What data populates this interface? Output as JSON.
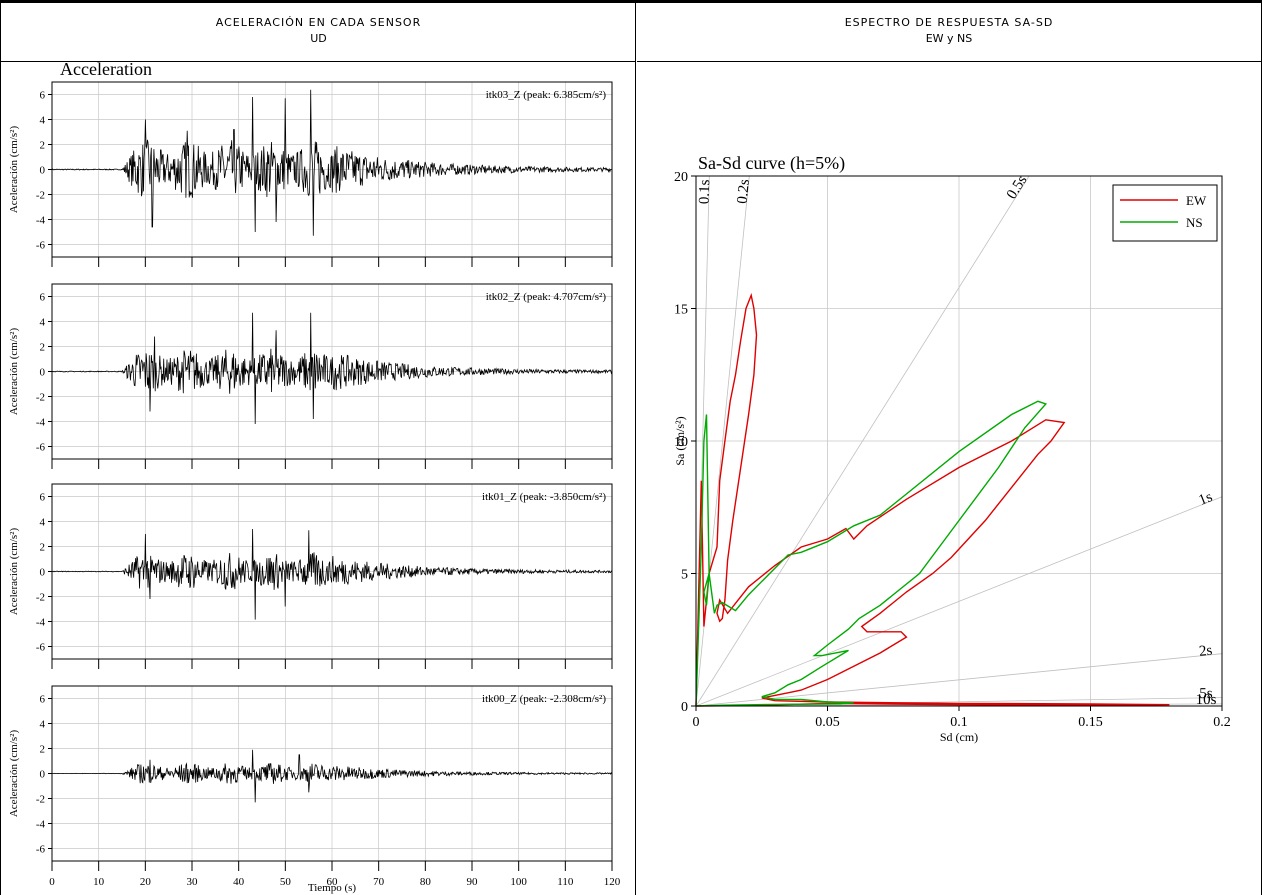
{
  "headers": {
    "left_title": "ACELERACIÓN EN CADA SENSOR",
    "left_sub": "UD",
    "right_title": "ESPECTRO DE RESPUESTA SA-SD",
    "right_sub": "EW y NS"
  },
  "colors": {
    "ew": "#e00000",
    "ns": "#00aa00",
    "grid": "#c8c8c8",
    "trace": "#000000"
  },
  "chart_data": [
    {
      "type": "line",
      "title": "Acceleration",
      "xlabel": "Tiempo (s)",
      "ylabel": "Aceleración (cm/s²)",
      "xlim": [
        0,
        120
      ],
      "ylim": [
        -7,
        7
      ],
      "xticks": [
        0,
        10,
        20,
        30,
        40,
        50,
        60,
        70,
        80,
        90,
        100,
        110,
        120
      ],
      "yticks": [
        -6,
        -4,
        -2,
        0,
        2,
        4,
        6
      ],
      "panels": [
        {
          "name": "itk03_Z",
          "label": "itk03_Z (peak: 6.385cm/s²)",
          "peak": 6.385,
          "peak_time": 55.5,
          "amp": 1.4,
          "bursts": [
            [
              20,
              4.0
            ],
            [
              21.5,
              -4.6
            ],
            [
              29,
              3.1
            ],
            [
              39,
              3.2
            ],
            [
              43,
              5.8
            ],
            [
              43.6,
              -5.0
            ],
            [
              50,
              5.7
            ],
            [
              48,
              -4.2
            ],
            [
              55.5,
              6.385
            ],
            [
              56,
              -5.3
            ]
          ]
        },
        {
          "name": "itk02_Z",
          "label": "itk02_Z (peak: 4.707cm/s²)",
          "peak": 4.707,
          "peak_time": 55.5,
          "amp": 1.1,
          "bursts": [
            [
              21,
              -3.2
            ],
            [
              22,
              2.8
            ],
            [
              43,
              4.7
            ],
            [
              43.5,
              -4.2
            ],
            [
              48,
              3.3
            ],
            [
              55.5,
              4.707
            ],
            [
              56,
              -3.8
            ]
          ]
        },
        {
          "name": "itk01_Z",
          "label": "itk01_Z (peak: -3.850cm/s²)",
          "peak": -3.85,
          "peak_time": 43.5,
          "amp": 0.9,
          "bursts": [
            [
              20,
              3.0
            ],
            [
              21,
              -2.2
            ],
            [
              43.5,
              -3.85
            ],
            [
              43,
              3.4
            ],
            [
              55,
              3.3
            ],
            [
              50,
              -2.8
            ]
          ]
        },
        {
          "name": "itk00_Z",
          "label": "itk00_Z (peak: -2.308cm/s²)",
          "peak": -2.308,
          "peak_time": 43.5,
          "amp": 0.5,
          "bursts": [
            [
              21,
              1.1
            ],
            [
              43,
              1.9
            ],
            [
              43.5,
              -2.308
            ],
            [
              53,
              1.5
            ],
            [
              55,
              -1.5
            ]
          ]
        }
      ]
    },
    {
      "type": "line",
      "title": "Sa-Sd curve (h=5%)",
      "xlabel": "Sd (cm)",
      "ylabel": "Sa (cm/s²)",
      "xlim": [
        0,
        0.2
      ],
      "ylim": [
        0,
        20
      ],
      "xticks": [
        0,
        0.05,
        0.1,
        0.15,
        0.2
      ],
      "yticks": [
        0,
        5,
        10,
        15,
        20
      ],
      "period_lines": [
        "0.1s",
        "0.2s",
        "0.5s",
        "1s",
        "2s",
        "5s",
        "10s"
      ],
      "periods": [
        0.1,
        0.2,
        0.5,
        1,
        2,
        5,
        10
      ],
      "legend_loc": "top-right",
      "series": [
        {
          "name": "EW",
          "color": "#e00000",
          "x": [
            0,
            0.002,
            0.003,
            0.005,
            0.008,
            0.009,
            0.011,
            0.013,
            0.015,
            0.017,
            0.019,
            0.021,
            0.022,
            0.023,
            0.022,
            0.02,
            0.017,
            0.014,
            0.012,
            0.011,
            0.01,
            0.009,
            0.008,
            0.009,
            0.012,
            0.02,
            0.03,
            0.04,
            0.05,
            0.057,
            0.06,
            0.065,
            0.08,
            0.1,
            0.12,
            0.133,
            0.14,
            0.135,
            0.13,
            0.11,
            0.097,
            0.09,
            0.08,
            0.07,
            0.063,
            0.065,
            0.078,
            0.08,
            0.075,
            0.07,
            0.06,
            0.05,
            0.04,
            0.035,
            0.03,
            0.025,
            0.03,
            0.05,
            0.1,
            0.15,
            0.18,
            0.15,
            0.1,
            0.05,
            0.02,
            0
          ],
          "y": [
            0,
            8.5,
            3,
            5,
            6,
            8.5,
            10,
            11.5,
            12.5,
            13.8,
            15,
            15.5,
            15,
            14,
            12.5,
            11,
            9,
            7,
            5.5,
            4,
            3.3,
            3.2,
            3.5,
            4,
            3.5,
            4.5,
            5.3,
            6,
            6.3,
            6.7,
            6.3,
            6.8,
            7.8,
            9,
            10,
            10.8,
            10.7,
            10,
            9.5,
            7,
            5.6,
            5,
            4.3,
            3.5,
            3,
            2.8,
            2.8,
            2.6,
            2.3,
            2,
            1.5,
            1,
            0.6,
            0.5,
            0.4,
            0.3,
            0.2,
            0.15,
            0.1,
            0.08,
            0.05,
            0.03,
            0.05,
            0.1,
            0.02,
            0
          ]
        },
        {
          "name": "NS",
          "color": "#00aa00",
          "x": [
            0,
            0.002,
            0.003,
            0.004,
            0.005,
            0.004,
            0.003,
            0.005,
            0.007,
            0.008,
            0.01,
            0.015,
            0.02,
            0.03,
            0.035,
            0.04,
            0.05,
            0.06,
            0.07,
            0.08,
            0.1,
            0.12,
            0.13,
            0.133,
            0.125,
            0.115,
            0.1,
            0.085,
            0.07,
            0.062,
            0.058,
            0.05,
            0.045,
            0.048,
            0.058,
            0.048,
            0.04,
            0.035,
            0.03,
            0.025,
            0.03,
            0.04,
            0.05,
            0.06,
            0.055,
            0.03,
            0.01,
            0
          ],
          "y": [
            0,
            6,
            10,
            11,
            5,
            3.8,
            4.3,
            5,
            3.5,
            3.8,
            3.9,
            3.6,
            4.2,
            5.2,
            5.7,
            5.8,
            6.2,
            6.8,
            7.2,
            8,
            9.6,
            11,
            11.5,
            11.4,
            10.5,
            9,
            7,
            5,
            3.8,
            3.3,
            2.9,
            2.3,
            1.9,
            1.9,
            2.1,
            1.5,
            1,
            0.8,
            0.5,
            0.35,
            0.25,
            0.25,
            0.15,
            0.12,
            0.08,
            0.06,
            0.03,
            0
          ]
        }
      ]
    }
  ]
}
